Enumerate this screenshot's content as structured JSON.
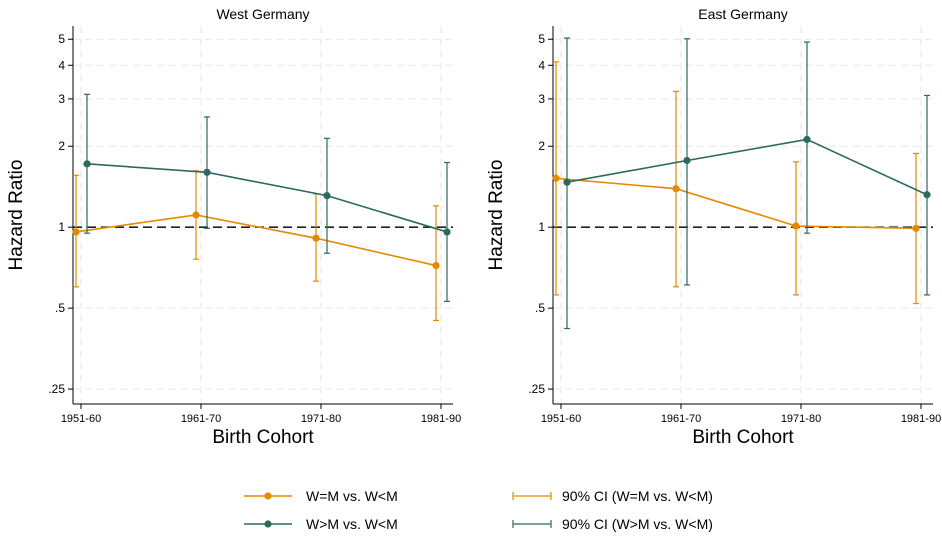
{
  "colors": {
    "wm": "#E58A00",
    "wgm": "#2B6A5E",
    "grid": "#E6E6E6",
    "reference": "#222222"
  },
  "chart_data": [
    {
      "type": "line",
      "title": "West Germany",
      "xlabel": "Birth Cohort",
      "ylabel": "Hazard Ratio",
      "scale": "log",
      "ylim": [
        0.22,
        5.6
      ],
      "yticks": [
        0.25,
        0.5,
        1,
        2,
        3,
        4,
        5
      ],
      "ytick_labels": [
        ".25",
        ".5",
        "1",
        "2",
        "3",
        "4",
        "5"
      ],
      "categories": [
        "1951-60",
        "1961-70",
        "1971-80",
        "1981-90"
      ],
      "reference_line": 1,
      "grid": true,
      "series": [
        {
          "name": "W=M vs. W<M",
          "values": [
            0.96,
            1.11,
            0.91,
            0.72
          ],
          "ci_low": [
            0.6,
            0.76,
            0.63,
            0.45
          ],
          "ci_high": [
            1.56,
            1.62,
            1.33,
            1.2
          ]
        },
        {
          "name": "W>M vs. W<M",
          "values": [
            1.72,
            1.6,
            1.31,
            0.96
          ],
          "ci_low": [
            0.95,
            0.99,
            0.8,
            0.53
          ],
          "ci_high": [
            3.12,
            2.57,
            2.14,
            1.74
          ]
        }
      ]
    },
    {
      "type": "line",
      "title": "East Germany",
      "xlabel": "Birth Cohort",
      "ylabel": "Hazard Ratio",
      "scale": "log",
      "ylim": [
        0.22,
        5.6
      ],
      "yticks": [
        0.25,
        0.5,
        1,
        2,
        3,
        4,
        5
      ],
      "ytick_labels": [
        ".25",
        ".5",
        "1",
        "2",
        "3",
        "4",
        "5"
      ],
      "categories": [
        "1951-60",
        "1961-70",
        "1971-80",
        "1981-90"
      ],
      "reference_line": 1,
      "grid": true,
      "series": [
        {
          "name": "W=M vs. W<M",
          "values": [
            1.52,
            1.39,
            1.01,
            0.99
          ],
          "ci_low": [
            0.56,
            0.6,
            0.56,
            0.52
          ],
          "ci_high": [
            4.12,
            3.2,
            1.75,
            1.88
          ]
        },
        {
          "name": "W>M vs. W<M",
          "values": [
            1.47,
            1.77,
            2.12,
            1.32
          ],
          "ci_low": [
            0.42,
            0.61,
            0.95,
            0.56
          ],
          "ci_high": [
            5.05,
            5.02,
            4.88,
            3.09
          ]
        }
      ]
    }
  ],
  "legend": {
    "position": "bottom",
    "entries": [
      {
        "label": "W=M vs. W<M",
        "kind": "line-marker",
        "color": "wm"
      },
      {
        "label": "90% CI (W=M vs. W<M)",
        "kind": "ci",
        "color": "wm"
      },
      {
        "label": "W>M vs. W<M",
        "kind": "line-marker",
        "color": "wgm"
      },
      {
        "label": "90% CI (W>M vs. W<M)",
        "kind": "ci",
        "color": "wgm"
      }
    ]
  }
}
